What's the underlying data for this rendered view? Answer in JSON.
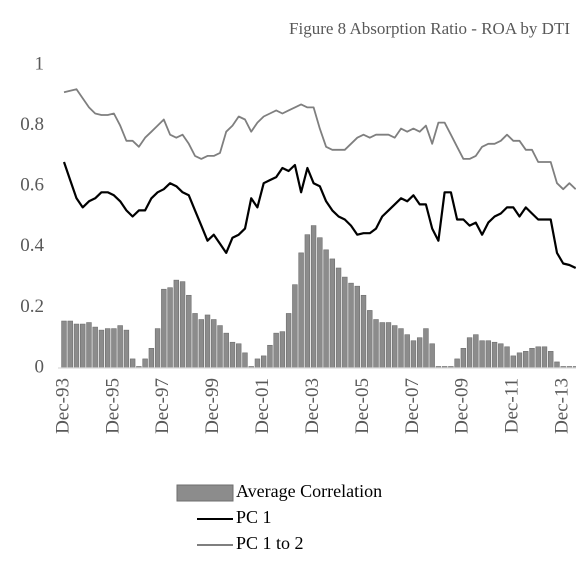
{
  "chart_data": {
    "type": "bar",
    "title": "Figure 8 Absorption Ratio - ROA by DTI",
    "categories": [
      "Dec-93",
      null,
      null,
      null,
      null,
      null,
      null,
      null,
      "Dec-95",
      null,
      null,
      null,
      null,
      null,
      null,
      null,
      "Dec-97",
      null,
      null,
      null,
      null,
      null,
      null,
      null,
      "Dec-99",
      null,
      null,
      null,
      null,
      null,
      null,
      null,
      "Dec-01",
      null,
      null,
      null,
      null,
      null,
      null,
      null,
      "Dec-03",
      null,
      null,
      null,
      null,
      null,
      null,
      null,
      "Dec-05",
      null,
      null,
      null,
      null,
      null,
      null,
      null,
      "Dec-07",
      null,
      null,
      null,
      null,
      null,
      null,
      null,
      "Dec-09",
      null,
      null,
      null,
      null,
      null,
      null,
      null,
      "Dec-11",
      null,
      null,
      null,
      null,
      null,
      null,
      null,
      "Dec-13",
      null,
      null
    ],
    "series": [
      {
        "name": "Average Correlation",
        "type": "bar",
        "color": "#8c8c8c",
        "values": [
          0.155,
          0.155,
          0.145,
          0.145,
          0.15,
          0.135,
          0.125,
          0.13,
          0.13,
          0.14,
          0.125,
          0.03,
          0.005,
          0.03,
          0.065,
          0.13,
          0.26,
          0.265,
          0.29,
          0.285,
          0.24,
          0.18,
          0.16,
          0.175,
          0.16,
          0.14,
          0.115,
          0.085,
          0.08,
          0.05,
          0.005,
          0.03,
          0.04,
          0.075,
          0.115,
          0.12,
          0.18,
          0.275,
          0.38,
          0.44,
          0.47,
          0.43,
          0.39,
          0.36,
          0.33,
          0.3,
          0.28,
          0.27,
          0.24,
          0.19,
          0.16,
          0.15,
          0.15,
          0.14,
          0.13,
          0.11,
          0.09,
          0.1,
          0.13,
          0.08,
          0.005,
          0.005,
          0.005,
          0.03,
          0.065,
          0.1,
          0.11,
          0.09,
          0.09,
          0.085,
          0.08,
          0.07,
          0.04,
          0.05,
          0.055,
          0.065,
          0.07,
          0.07,
          0.055,
          0.02,
          0.005,
          0.005,
          0.005
        ]
      },
      {
        "name": "PC 1",
        "type": "line",
        "color": "#000000",
        "values": [
          0.68,
          0.62,
          0.56,
          0.53,
          0.55,
          0.56,
          0.58,
          0.58,
          0.57,
          0.55,
          0.52,
          0.5,
          0.52,
          0.52,
          0.56,
          0.58,
          0.59,
          0.61,
          0.6,
          0.58,
          0.57,
          0.52,
          0.47,
          0.42,
          0.44,
          0.41,
          0.38,
          0.43,
          0.44,
          0.46,
          0.56,
          0.53,
          0.61,
          0.62,
          0.63,
          0.66,
          0.65,
          0.67,
          0.58,
          0.66,
          0.61,
          0.6,
          0.55,
          0.52,
          0.5,
          0.49,
          0.47,
          0.44,
          0.445,
          0.445,
          0.46,
          0.5,
          0.52,
          0.54,
          0.56,
          0.55,
          0.57,
          0.54,
          0.54,
          0.46,
          0.42,
          0.58,
          0.58,
          0.49,
          0.49,
          0.47,
          0.48,
          0.44,
          0.48,
          0.5,
          0.51,
          0.53,
          0.53,
          0.5,
          0.53,
          0.51,
          0.49,
          0.49,
          0.49,
          0.38,
          0.345,
          0.34,
          0.33
        ]
      },
      {
        "name": "PC 1 to 2",
        "type": "line",
        "color": "#7f7f7f",
        "values": [
          0.91,
          0.915,
          0.92,
          0.89,
          0.86,
          0.84,
          0.835,
          0.835,
          0.84,
          0.8,
          0.75,
          0.75,
          0.73,
          0.76,
          0.78,
          0.8,
          0.82,
          0.77,
          0.76,
          0.77,
          0.74,
          0.7,
          0.69,
          0.7,
          0.7,
          0.71,
          0.78,
          0.8,
          0.83,
          0.82,
          0.78,
          0.81,
          0.83,
          0.84,
          0.85,
          0.84,
          0.85,
          0.86,
          0.87,
          0.86,
          0.86,
          0.79,
          0.73,
          0.72,
          0.72,
          0.72,
          0.74,
          0.76,
          0.77,
          0.76,
          0.77,
          0.77,
          0.77,
          0.76,
          0.79,
          0.78,
          0.79,
          0.78,
          0.8,
          0.74,
          0.81,
          0.81,
          0.77,
          0.73,
          0.69,
          0.69,
          0.7,
          0.73,
          0.74,
          0.74,
          0.75,
          0.77,
          0.75,
          0.75,
          0.72,
          0.72,
          0.68,
          0.68,
          0.68,
          0.61,
          0.59,
          0.61,
          0.59
        ]
      }
    ],
    "ylim": [
      0,
      1
    ],
    "yticks": [
      0,
      0.2,
      0.4,
      0.6,
      0.8,
      1
    ],
    "grid": false,
    "legend": "bottom"
  }
}
